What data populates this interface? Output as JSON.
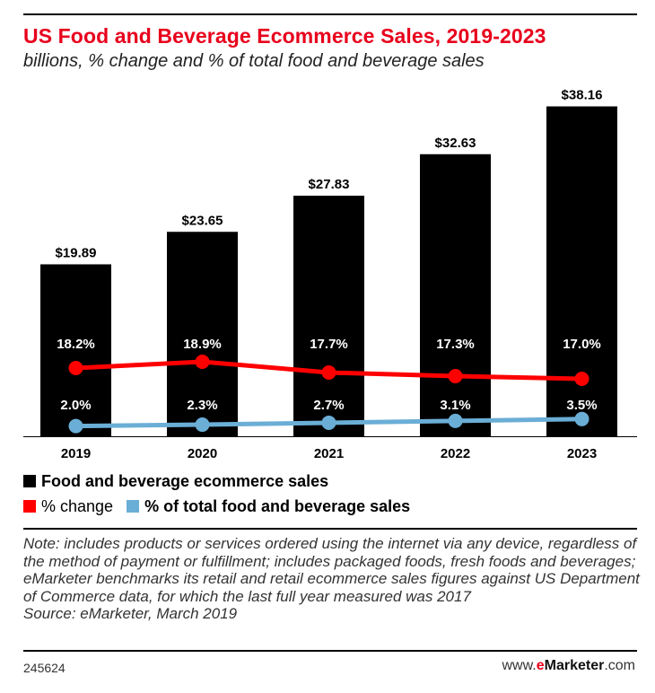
{
  "title": "US Food and Beverage Ecommerce Sales, 2019-2023",
  "subtitle": "billions, % change and % of total food and beverage sales",
  "legend": {
    "sales": "Food and beverage ecommerce sales",
    "change": "% change",
    "share": "% of total food and beverage sales"
  },
  "note": "Note: includes products or services ordered using the internet via any device, regardless of the method of payment or fulfillment; includes packaged foods, fresh foods and beverages; eMarketer benchmarks its retail and retail ecommerce sales figures against US Department of Commerce data, for which the last full year measured was 2017",
  "source": "Source: eMarketer, March 2019",
  "footer": {
    "chart_id": "245624",
    "brand_prefix": "www.",
    "brand_e": "e",
    "brand_name": "Marketer",
    "brand_suffix": ".com"
  },
  "colors": {
    "bars": "#000000",
    "change_line": "#ff0000",
    "share_line": "#6aaed6",
    "title": "#e8001c"
  },
  "chart_data": {
    "type": "bar",
    "categories": [
      "2019",
      "2020",
      "2021",
      "2022",
      "2023"
    ],
    "series": [
      {
        "name": "Food and beverage ecommerce sales",
        "type": "bar",
        "values": [
          19.89,
          23.65,
          27.83,
          32.63,
          38.16
        ],
        "labels": [
          "$19.89",
          "$23.65",
          "$27.83",
          "$32.63",
          "$38.16"
        ]
      },
      {
        "name": "% change",
        "type": "line",
        "values": [
          18.2,
          18.9,
          17.7,
          17.3,
          17.0
        ],
        "labels": [
          "18.2%",
          "18.9%",
          "17.7%",
          "17.3%",
          "17.0%"
        ]
      },
      {
        "name": "% of total food and beverage sales",
        "type": "line",
        "values": [
          2.0,
          2.3,
          2.7,
          3.1,
          3.5
        ],
        "labels": [
          "2.0%",
          "2.3%",
          "2.7%",
          "3.1%",
          "3.5%"
        ]
      }
    ]
  }
}
